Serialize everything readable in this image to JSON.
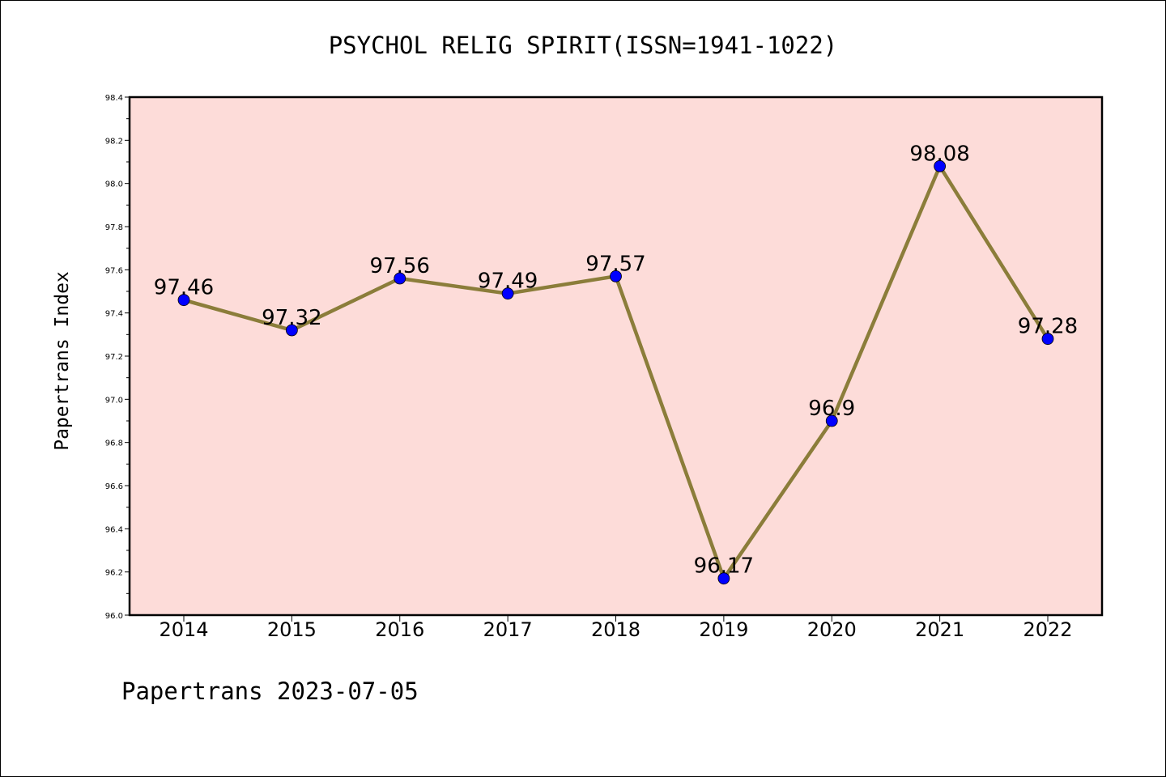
{
  "chart_data": {
    "type": "line",
    "title": "PSYCHOL RELIG SPIRIT(ISSN=1941-1022)",
    "xlabel": "",
    "ylabel": "Papertrans Index",
    "categories": [
      "2014",
      "2015",
      "2016",
      "2017",
      "2018",
      "2019",
      "2020",
      "2021",
      "2022"
    ],
    "values": [
      97.46,
      97.32,
      97.56,
      97.49,
      97.57,
      96.17,
      96.9,
      98.08,
      97.28
    ],
    "data_labels": [
      "97.46",
      "97.32",
      "97.56",
      "97.49",
      "97.57",
      "96.17",
      "96.9",
      "98.08",
      "97.28"
    ],
    "ylim": [
      96.0,
      98.4
    ],
    "yticks": [
      "96.0",
      "96.2",
      "96.4",
      "96.6",
      "96.8",
      "97.0",
      "97.2",
      "97.4",
      "97.6",
      "97.8",
      "98.0",
      "98.2",
      "98.4"
    ],
    "grid": false,
    "colors": {
      "plot_background": "#fddcd9",
      "line": "#8b7d3a",
      "marker": "#0000ff"
    }
  },
  "footer": "Papertrans 2023-07-05"
}
